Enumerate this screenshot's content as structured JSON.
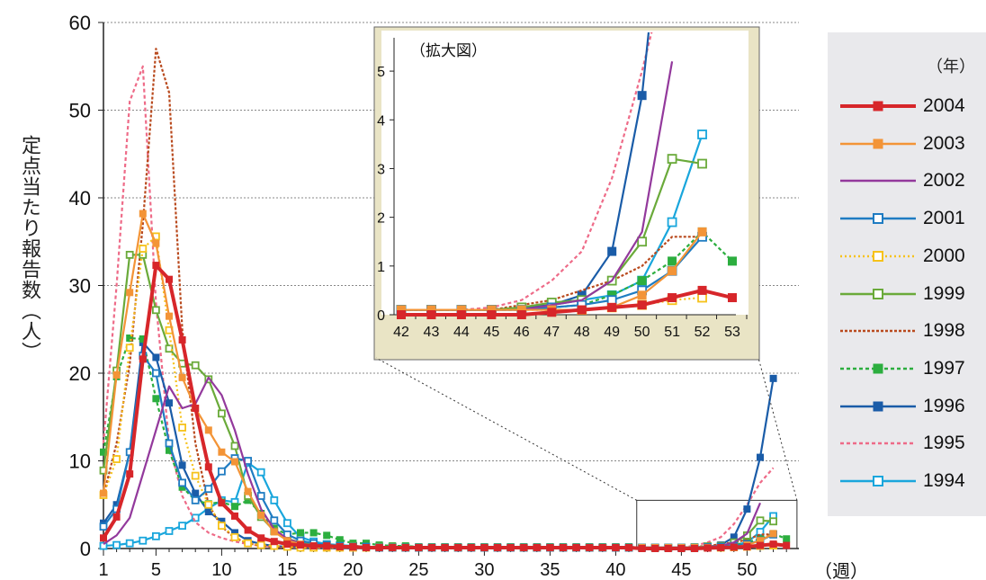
{
  "chart_data": {
    "type": "line",
    "ylabel": "定点当たり報告数（人）",
    "xunit": "（週）",
    "ylim": [
      0,
      60
    ],
    "yticks": [
      0,
      10,
      20,
      30,
      40,
      50,
      60
    ],
    "xlim": [
      1,
      54
    ],
    "xticks": [
      1,
      5,
      10,
      15,
      20,
      25,
      30,
      35,
      40,
      45,
      50
    ],
    "grid": true,
    "legend_title": "（年）",
    "legend_position": "right",
    "series": [
      {
        "name": "1994",
        "color": "#19a6dc",
        "dash": "",
        "marker": "open",
        "x": [
          1,
          2,
          3,
          4,
          5,
          6,
          7,
          8,
          9,
          10,
          11,
          12,
          13,
          14,
          15,
          16,
          17,
          18,
          19,
          20,
          21,
          22,
          23,
          24,
          25,
          26,
          27,
          28,
          29,
          30,
          31,
          32,
          33,
          34,
          35,
          36,
          37,
          38,
          39,
          40,
          41,
          42,
          43,
          44,
          45,
          46,
          47,
          48,
          49,
          50,
          51,
          52
        ],
        "y": [
          0.3,
          0.4,
          0.6,
          0.9,
          1.4,
          2.0,
          2.6,
          3.5,
          4.6,
          5.5,
          5.3,
          9.8,
          8.7,
          5.5,
          2.9,
          1.3,
          0.8,
          0.5,
          0.4,
          0.3,
          0.2,
          0.2,
          0.1,
          0.1,
          0.1,
          0.1,
          0.1,
          0.1,
          0.1,
          0.1,
          0.1,
          0.1,
          0.1,
          0.1,
          0.1,
          0.1,
          0.1,
          0.1,
          0.1,
          0.1,
          0.1,
          0.1,
          0.1,
          0.1,
          0.1,
          0.1,
          0.2,
          0.3,
          0.4,
          0.7,
          1.9,
          3.7
        ]
      },
      {
        "name": "1995",
        "color": "#ee6b88",
        "dash": "4,3",
        "marker": "none",
        "x": [
          1,
          2,
          3,
          4,
          5,
          6,
          7,
          8,
          9,
          10,
          11,
          12,
          13,
          14,
          15,
          16,
          17,
          18,
          19,
          20,
          21,
          22,
          23,
          24,
          25,
          26,
          27,
          28,
          29,
          30,
          31,
          32,
          33,
          34,
          35,
          36,
          37,
          38,
          39,
          40,
          41,
          42,
          43,
          44,
          45,
          46,
          47,
          48,
          49,
          50,
          51,
          52
        ],
        "y": [
          12,
          30,
          51,
          55,
          28,
          12,
          6,
          3,
          1.8,
          1.2,
          0.8,
          0.5,
          0.3,
          0.2,
          0.15,
          0.1,
          0.1,
          0.1,
          0.1,
          0.1,
          0.1,
          0.1,
          0.1,
          0.1,
          0.1,
          0.1,
          0.1,
          0.1,
          0.1,
          0.1,
          0.1,
          0.1,
          0.1,
          0.1,
          0.1,
          0.1,
          0.1,
          0.1,
          0.1,
          0.1,
          0.1,
          0.1,
          0.1,
          0.1,
          0.15,
          0.3,
          0.7,
          1.3,
          2.8,
          5,
          7.5,
          9.2
        ]
      },
      {
        "name": "1996",
        "color": "#1a5ca8",
        "dash": "",
        "marker": "filled",
        "x": [
          1,
          2,
          3,
          4,
          5,
          6,
          7,
          8,
          9,
          10,
          11,
          12,
          13,
          14,
          15,
          16,
          17,
          18,
          19,
          20,
          21,
          22,
          23,
          24,
          25,
          26,
          27,
          28,
          29,
          30,
          31,
          32,
          33,
          34,
          35,
          36,
          37,
          38,
          39,
          40,
          41,
          42,
          43,
          44,
          45,
          46,
          47,
          48,
          49,
          50,
          51,
          52
        ],
        "y": [
          2.9,
          5.0,
          11.0,
          23.5,
          21.8,
          16.6,
          9.5,
          6.3,
          4.2,
          3.1,
          1.8,
          0.9,
          0.5,
          0.3,
          0.2,
          0.15,
          0.1,
          0.1,
          0.1,
          0.1,
          0.1,
          0.1,
          0.1,
          0.1,
          0.1,
          0.1,
          0.1,
          0.1,
          0.1,
          0.1,
          0.1,
          0.1,
          0.1,
          0.1,
          0.1,
          0.1,
          0.1,
          0.1,
          0.1,
          0.1,
          0.1,
          0.1,
          0.1,
          0.1,
          0.1,
          0.15,
          0.2,
          0.4,
          1.3,
          4.5,
          10.4,
          19.4
        ]
      },
      {
        "name": "1997",
        "color": "#2cae3f",
        "dash": "4,3",
        "marker": "filled",
        "x": [
          1,
          2,
          3,
          4,
          5,
          6,
          7,
          8,
          9,
          10,
          11,
          12,
          13,
          14,
          15,
          16,
          17,
          18,
          19,
          20,
          21,
          22,
          23,
          24,
          25,
          26,
          27,
          28,
          29,
          30,
          31,
          32,
          33,
          34,
          35,
          36,
          37,
          38,
          39,
          40,
          41,
          42,
          43,
          44,
          45,
          46,
          47,
          48,
          49,
          50,
          51,
          52,
          53
        ],
        "y": [
          11.0,
          19.6,
          24.0,
          23.9,
          17.1,
          11.2,
          7.0,
          5.5,
          5.1,
          5.3,
          4.8,
          5.5,
          4.0,
          2.3,
          1.6,
          1.8,
          1.8,
          1.5,
          1.0,
          0.6,
          0.6,
          0.4,
          0.3,
          0.3,
          0.2,
          0.2,
          0.2,
          0.2,
          0.2,
          0.2,
          0.2,
          0.2,
          0.2,
          0.2,
          0.2,
          0.2,
          0.2,
          0.2,
          0.2,
          0.2,
          0.2,
          0.1,
          0.1,
          0.1,
          0.1,
          0.1,
          0.15,
          0.2,
          0.4,
          0.7,
          1.1,
          1.7,
          1.1
        ]
      },
      {
        "name": "1998",
        "color": "#b94a1e",
        "dash": "3,2",
        "marker": "none",
        "x": [
          1,
          2,
          3,
          4,
          5,
          6,
          7,
          8,
          9,
          10,
          11,
          12,
          13,
          14,
          15,
          16,
          17,
          18,
          19,
          20,
          21,
          22,
          23,
          24,
          25,
          26,
          27,
          28,
          29,
          30,
          31,
          32,
          33,
          34,
          35,
          36,
          37,
          38,
          39,
          40,
          41,
          42,
          43,
          44,
          45,
          46,
          47,
          48,
          49,
          50,
          51,
          52
        ],
        "y": [
          6,
          12,
          21,
          37,
          57,
          52,
          25,
          12,
          5,
          2.5,
          1.2,
          0.6,
          0.3,
          0.2,
          0.15,
          0.1,
          0.1,
          0.1,
          0.1,
          0.1,
          0.1,
          0.1,
          0.1,
          0.1,
          0.1,
          0.1,
          0.1,
          0.1,
          0.1,
          0.1,
          0.1,
          0.1,
          0.1,
          0.1,
          0.1,
          0.1,
          0.1,
          0.1,
          0.1,
          0.1,
          0.1,
          0.1,
          0.1,
          0.1,
          0.1,
          0.2,
          0.3,
          0.5,
          0.7,
          1.0,
          1.6,
          1.6
        ]
      },
      {
        "name": "1999",
        "color": "#6aaa3a",
        "dash": "",
        "marker": "open",
        "x": [
          1,
          2,
          3,
          4,
          5,
          6,
          7,
          8,
          9,
          10,
          11,
          12,
          13,
          14,
          15,
          16,
          17,
          18,
          19,
          20,
          21,
          22,
          23,
          24,
          25,
          26,
          27,
          28,
          29,
          30,
          31,
          32,
          33,
          34,
          35,
          36,
          37,
          38,
          39,
          40,
          41,
          42,
          43,
          44,
          45,
          46,
          47,
          48,
          49,
          50,
          51,
          52
        ],
        "y": [
          8.9,
          20.3,
          33.5,
          33.5,
          27.2,
          22.8,
          21.1,
          20.9,
          19.3,
          15.4,
          11.7,
          6.0,
          3.6,
          2.0,
          1.1,
          0.7,
          0.5,
          0.4,
          0.3,
          0.3,
          0.2,
          0.2,
          0.2,
          0.1,
          0.1,
          0.1,
          0.1,
          0.1,
          0.1,
          0.1,
          0.1,
          0.1,
          0.1,
          0.1,
          0.1,
          0.1,
          0.1,
          0.1,
          0.1,
          0.1,
          0.1,
          0.1,
          0.1,
          0.1,
          0.1,
          0.15,
          0.25,
          0.3,
          0.7,
          1.5,
          3.2,
          3.1
        ]
      },
      {
        "name": "2000",
        "color": "#f6c21b",
        "dash": "2,3",
        "marker": "open",
        "x": [
          1,
          2,
          3,
          4,
          5,
          6,
          7,
          8,
          9,
          10,
          11,
          12,
          13,
          14,
          15,
          16,
          17,
          18,
          19,
          20,
          21,
          22,
          23,
          24,
          25,
          26,
          27,
          28,
          29,
          30,
          31,
          32,
          33,
          34,
          35,
          36,
          37,
          38,
          39,
          40,
          41,
          42,
          43,
          44,
          45,
          46,
          47,
          48,
          49,
          50,
          51,
          52
        ],
        "y": [
          6.1,
          10.2,
          22.9,
          34.2,
          35.6,
          24.9,
          13.8,
          8.3,
          5.0,
          2.6,
          1.3,
          0.6,
          0.4,
          0.3,
          0.2,
          0.1,
          0.1,
          0.1,
          0.1,
          0.1,
          0.1,
          0.1,
          0.1,
          0.1,
          0.1,
          0.1,
          0.1,
          0.1,
          0.1,
          0.1,
          0.1,
          0.1,
          0.1,
          0.1,
          0.1,
          0.1,
          0.1,
          0.1,
          0.1,
          0.1,
          0.1,
          0.1,
          0.1,
          0.1,
          0.1,
          0.1,
          0.1,
          0.1,
          0.15,
          0.2,
          0.3,
          0.35
        ]
      },
      {
        "name": "2001",
        "color": "#1f7cc2",
        "dash": "",
        "marker": "open",
        "x": [
          1,
          2,
          3,
          4,
          5,
          6,
          7,
          8,
          9,
          10,
          11,
          12,
          13,
          14,
          15,
          16,
          17,
          18,
          19,
          20,
          21,
          22,
          23,
          24,
          25,
          26,
          27,
          28,
          29,
          30,
          31,
          32,
          33,
          34,
          35,
          36,
          37,
          38,
          39,
          40,
          41,
          42,
          43,
          44,
          45,
          46,
          47,
          48,
          49,
          50,
          51,
          52
        ],
        "y": [
          2.5,
          4.5,
          11,
          22,
          20,
          12,
          7.5,
          5.5,
          6.8,
          8.8,
          10.3,
          10.0,
          6.0,
          3.2,
          1.6,
          0.9,
          0.6,
          0.4,
          0.3,
          0.2,
          0.2,
          0.1,
          0.1,
          0.1,
          0.1,
          0.1,
          0.1,
          0.1,
          0.1,
          0.1,
          0.1,
          0.1,
          0.1,
          0.1,
          0.1,
          0.1,
          0.1,
          0.1,
          0.1,
          0.1,
          0.1,
          0.1,
          0.1,
          0.1,
          0.1,
          0.1,
          0.15,
          0.2,
          0.3,
          0.5,
          0.9,
          1.6
        ]
      },
      {
        "name": "2002",
        "color": "#93399c",
        "dash": "",
        "marker": "none",
        "x": [
          1,
          2,
          3,
          4,
          5,
          6,
          7,
          8,
          9,
          10,
          11,
          12,
          13,
          14,
          15,
          16,
          17,
          18,
          19,
          20,
          21,
          22,
          23,
          24,
          25,
          26,
          27,
          28,
          29,
          30,
          31,
          32,
          33,
          34,
          35,
          36,
          37,
          38,
          39,
          40,
          41,
          42,
          43,
          44,
          45,
          46,
          47,
          48,
          49,
          50,
          51
        ],
        "y": [
          0.5,
          1.5,
          3.5,
          8.5,
          13.5,
          18.5,
          16,
          16.5,
          19.5,
          17.5,
          13.5,
          8.5,
          4.5,
          2.2,
          1.1,
          0.6,
          0.3,
          0.2,
          0.1,
          0.1,
          0.1,
          0.1,
          0.1,
          0.1,
          0.1,
          0.1,
          0.1,
          0.1,
          0.1,
          0.1,
          0.1,
          0.1,
          0.1,
          0.1,
          0.1,
          0.1,
          0.1,
          0.1,
          0.1,
          0.1,
          0.1,
          0.1,
          0.1,
          0.1,
          0.1,
          0.1,
          0.2,
          0.3,
          0.7,
          1.7,
          5.2
        ]
      },
      {
        "name": "2003",
        "color": "#f39437",
        "dash": "",
        "marker": "filled",
        "x": [
          1,
          2,
          3,
          4,
          5,
          6,
          7,
          8,
          9,
          10,
          11,
          12,
          13,
          14,
          15,
          16,
          17,
          18,
          19,
          20,
          21,
          22,
          23,
          24,
          25,
          26,
          27,
          28,
          29,
          30,
          31,
          32,
          33,
          34,
          35,
          36,
          37,
          38,
          39,
          40,
          41,
          42,
          43,
          44,
          45,
          46,
          47,
          48,
          49,
          50,
          51,
          52
        ],
        "y": [
          6.3,
          19.8,
          29.2,
          38.2,
          34.8,
          26.5,
          19.5,
          16.0,
          13.5,
          11.0,
          9.9,
          6.5,
          3.8,
          1.9,
          0.9,
          0.5,
          0.3,
          0.2,
          0.2,
          0.1,
          0.1,
          0.1,
          0.1,
          0.1,
          0.1,
          0.1,
          0.1,
          0.1,
          0.1,
          0.1,
          0.1,
          0.1,
          0.1,
          0.1,
          0.1,
          0.1,
          0.1,
          0.1,
          0.1,
          0.1,
          0.1,
          0.1,
          0.1,
          0.1,
          0.1,
          0.1,
          0.1,
          0.1,
          0.15,
          0.4,
          0.9,
          1.7
        ]
      },
      {
        "name": "2004",
        "color": "#d7262a",
        "dash": "",
        "marker": "filled",
        "x": [
          1,
          2,
          3,
          4,
          5,
          6,
          7,
          8,
          9,
          10,
          11,
          12,
          13,
          14,
          15,
          16,
          17,
          18,
          19,
          20,
          21,
          22,
          23,
          24,
          25,
          26,
          27,
          28,
          29,
          30,
          31,
          32,
          33,
          34,
          35,
          36,
          37,
          38,
          39,
          40,
          41,
          42,
          43,
          44,
          45,
          46,
          47,
          48,
          49,
          50,
          51,
          52,
          53
        ],
        "y": [
          1.2,
          3.6,
          8.5,
          21.6,
          32.3,
          30.7,
          23.8,
          16.0,
          9.3,
          5.2,
          3.7,
          2.1,
          1.2,
          0.8,
          0.5,
          0.4,
          0.3,
          0.3,
          0.2,
          0.2,
          0.1,
          0.1,
          0.1,
          0.1,
          0.1,
          0.1,
          0.1,
          0.1,
          0.1,
          0.1,
          0.1,
          0.1,
          0.1,
          0.1,
          0.1,
          0.1,
          0.1,
          0.1,
          0.1,
          0.1,
          0.1,
          0.0,
          0.0,
          0.0,
          0.0,
          0.0,
          0.05,
          0.1,
          0.15,
          0.2,
          0.35,
          0.5,
          0.35
        ]
      }
    ],
    "inset": {
      "title": "（拡大図）",
      "xlim": [
        42,
        53
      ],
      "ylim": [
        0,
        5.5
      ],
      "yticks": [
        0,
        1,
        2,
        3,
        4,
        5
      ],
      "xticks": [
        42,
        43,
        44,
        45,
        46,
        47,
        48,
        49,
        50,
        51,
        52,
        53
      ]
    }
  }
}
